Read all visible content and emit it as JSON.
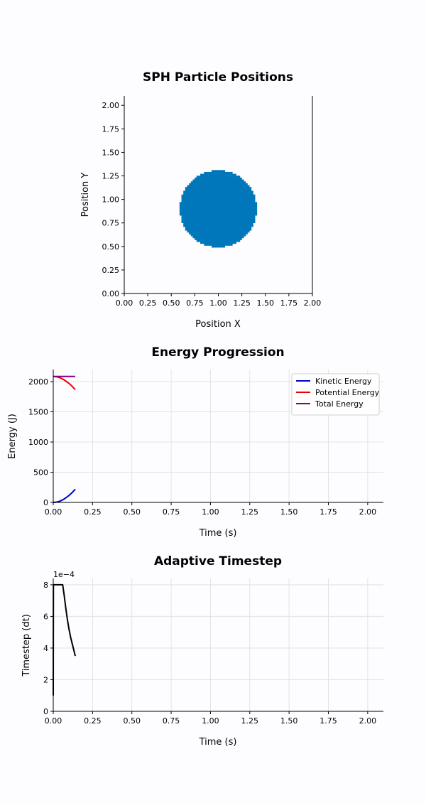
{
  "chart_data": [
    {
      "type": "scatter",
      "title": "SPH Particle Positions",
      "xlabel": "Position X",
      "ylabel": "Position Y",
      "xlim": [
        0,
        2
      ],
      "ylim": [
        0,
        2.1
      ],
      "xticks": [
        "0.00",
        "0.25",
        "0.50",
        "0.75",
        "1.00",
        "1.25",
        "1.50",
        "1.75",
        "2.00"
      ],
      "yticks": [
        "0.00",
        "0.25",
        "0.50",
        "0.75",
        "1.00",
        "1.25",
        "1.50",
        "1.75",
        "2.00"
      ],
      "grid": false,
      "color": "#0077bb",
      "cluster": {
        "center": [
          1.0,
          0.9
        ],
        "radius": 0.4,
        "x_range": [
          0.6,
          1.4
        ],
        "y_range": [
          0.5,
          1.3
        ]
      }
    },
    {
      "type": "line",
      "title": "Energy Progression",
      "xlabel": "Time (s)",
      "ylabel": "Energy (J)",
      "xlim": [
        0,
        2.1
      ],
      "ylim": [
        0,
        2200
      ],
      "xticks": [
        "0.00",
        "0.25",
        "0.50",
        "0.75",
        "1.00",
        "1.25",
        "1.50",
        "1.75",
        "2.00"
      ],
      "yticks": [
        "0",
        "500",
        "1000",
        "1500",
        "2000"
      ],
      "grid": true,
      "legend_position": "top-right",
      "series": [
        {
          "name": "Kinetic Energy",
          "color": "#0000cc",
          "x": [
            0,
            0.02,
            0.04,
            0.06,
            0.08,
            0.1,
            0.12,
            0.14
          ],
          "y": [
            0,
            5,
            18,
            42,
            75,
            115,
            162,
            218
          ]
        },
        {
          "name": "Potential Energy",
          "color": "#ee0000",
          "x": [
            0,
            0.02,
            0.04,
            0.06,
            0.08,
            0.1,
            0.12,
            0.14
          ],
          "y": [
            2085,
            2080,
            2067,
            2043,
            2010,
            1970,
            1923,
            1867
          ]
        },
        {
          "name": "Total Energy",
          "color": "#800080",
          "x": [
            0,
            0.14
          ],
          "y": [
            2085,
            2085
          ]
        }
      ]
    },
    {
      "type": "line",
      "title": "Adaptive Timestep",
      "xlabel": "Time (s)",
      "ylabel": "Timestep (dt)",
      "offset_label": "1e−4",
      "xlim": [
        0,
        2.1
      ],
      "ylim": [
        0,
        8.4
      ],
      "xticks": [
        "0.00",
        "0.25",
        "0.50",
        "0.75",
        "1.00",
        "1.25",
        "1.50",
        "1.75",
        "2.00"
      ],
      "yticks": [
        "0",
        "2",
        "4",
        "6",
        "8"
      ],
      "grid": true,
      "series": [
        {
          "color": "#000000",
          "x": [
            0,
            0.001,
            0.002,
            0.06,
            0.07,
            0.08,
            0.09,
            0.1,
            0.11,
            0.12,
            0.13,
            0.14
          ],
          "y": [
            1.0,
            8.0,
            8.0,
            8.0,
            7.3,
            6.5,
            5.8,
            5.2,
            4.7,
            4.3,
            3.9,
            3.5
          ]
        }
      ]
    }
  ]
}
